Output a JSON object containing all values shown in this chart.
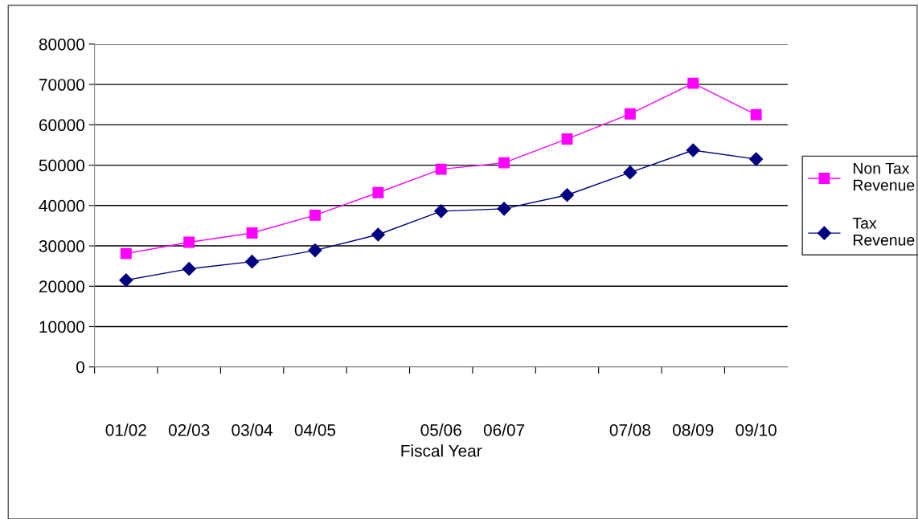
{
  "chart_data": {
    "type": "line",
    "xlabel": "Fiscal Year",
    "categories": [
      "01/02",
      "02/03",
      "03/04",
      "04/05",
      null,
      "05/06",
      "06/07",
      null,
      "07/08",
      "08/09",
      "09/10"
    ],
    "series": [
      {
        "name": "Non Tax Revenue",
        "color": "#ff00ff",
        "marker": "square",
        "values": [
          28100,
          30900,
          33200,
          37600,
          43200,
          49000,
          50600,
          56500,
          62700,
          70300,
          62500
        ]
      },
      {
        "name": "Tax Revenue",
        "color": "#000080",
        "marker": "diamond",
        "values": [
          21500,
          24300,
          26100,
          28900,
          32800,
          38600,
          39200,
          42600,
          48200,
          53700,
          51500
        ]
      }
    ],
    "ylim": [
      0,
      80000
    ],
    "yticks": [
      0,
      10000,
      20000,
      30000,
      40000,
      50000,
      60000,
      70000,
      80000
    ],
    "grid": "y",
    "legend": "right",
    "line_style": "solid"
  }
}
